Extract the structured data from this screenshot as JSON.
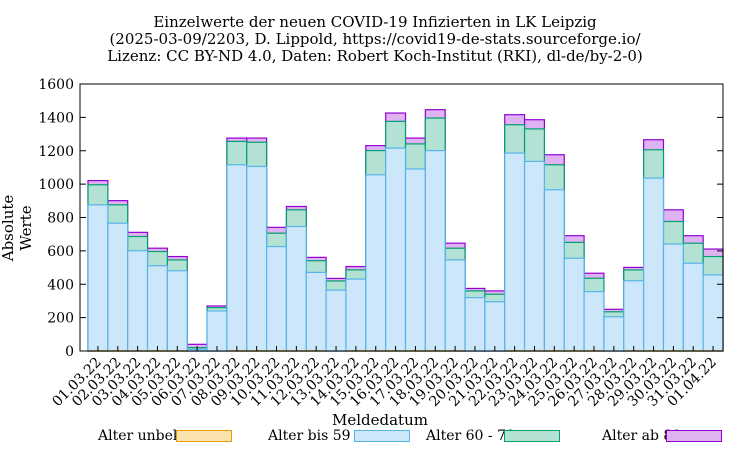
{
  "title_lines": [
    "Einzelwerte der neuen COVID-19 Infizierten in LK Leipzig",
    "(2025-03-09/2203, D. Lippold, https://covid19-de-stats.sourceforge.io/",
    "Lizenz: CC BY-ND 4.0, Daten: Robert Koch-Institut (RKI), dl-de/by-2-0)"
  ],
  "chart_data": {
    "type": "bar",
    "stacked": true,
    "title": "Einzelwerte der neuen COVID-19 Infizierten in LK Leipzig",
    "xlabel": "Meldedatum",
    "ylabel": "Absolute Werte",
    "ylim": [
      0,
      1600
    ],
    "yticks": [
      0,
      200,
      400,
      600,
      800,
      1000,
      1200,
      1400,
      1600
    ],
    "grid": false,
    "legend": "bottom",
    "categories": [
      "01.03.22",
      "02.03.22",
      "03.03.22",
      "04.03.22",
      "05.03.22",
      "06.03.22",
      "07.03.22",
      "08.03.22",
      "09.03.22",
      "10.03.22",
      "11.03.22",
      "12.03.22",
      "13.03.22",
      "14.03.22",
      "15.03.22",
      "16.03.22",
      "17.03.22",
      "18.03.22",
      "19.03.22",
      "20.03.22",
      "21.03.22",
      "22.03.22",
      "23.03.22",
      "24.03.22",
      "25.03.22",
      "26.03.22",
      "27.03.22",
      "28.03.22",
      "29.03.22",
      "30.03.22",
      "31.03.22",
      "01.04.22"
    ],
    "series": [
      {
        "name": "Alter unbek.",
        "color": "#e69f00",
        "fill": "#fbe3b0",
        "values": [
          1,
          1,
          1,
          1,
          1,
          0,
          0,
          1,
          1,
          1,
          1,
          1,
          0,
          1,
          1,
          1,
          1,
          1,
          1,
          0,
          0,
          1,
          1,
          1,
          1,
          1,
          0,
          1,
          1,
          1,
          1,
          1
        ]
      },
      {
        "name": "Alter bis 59",
        "color": "#56b4e9",
        "fill": "#cce7f9",
        "values": [
          875,
          765,
          600,
          510,
          480,
          10,
          240,
          1115,
          1105,
          625,
          745,
          470,
          365,
          430,
          1055,
          1215,
          1090,
          1200,
          545,
          320,
          295,
          1185,
          1135,
          965,
          555,
          355,
          205,
          420,
          1035,
          640,
          525,
          455
        ]
      },
      {
        "name": "Alter 60 - 79",
        "color": "#009e73",
        "fill": "#b3e2d5",
        "values": [
          120,
          110,
          85,
          85,
          65,
          10,
          20,
          140,
          145,
          80,
          100,
          70,
          55,
          55,
          145,
          160,
          150,
          195,
          70,
          40,
          45,
          170,
          195,
          150,
          95,
          80,
          30,
          65,
          170,
          135,
          120,
          110
        ]
      },
      {
        "name": "Alter ab 80",
        "color": "#9400d3",
        "fill": "#dfb3f2",
        "values": [
          25,
          25,
          25,
          20,
          20,
          20,
          10,
          20,
          25,
          35,
          20,
          20,
          15,
          20,
          30,
          50,
          35,
          50,
          30,
          15,
          20,
          60,
          55,
          60,
          40,
          30,
          15,
          15,
          60,
          70,
          45,
          45
        ]
      }
    ]
  }
}
